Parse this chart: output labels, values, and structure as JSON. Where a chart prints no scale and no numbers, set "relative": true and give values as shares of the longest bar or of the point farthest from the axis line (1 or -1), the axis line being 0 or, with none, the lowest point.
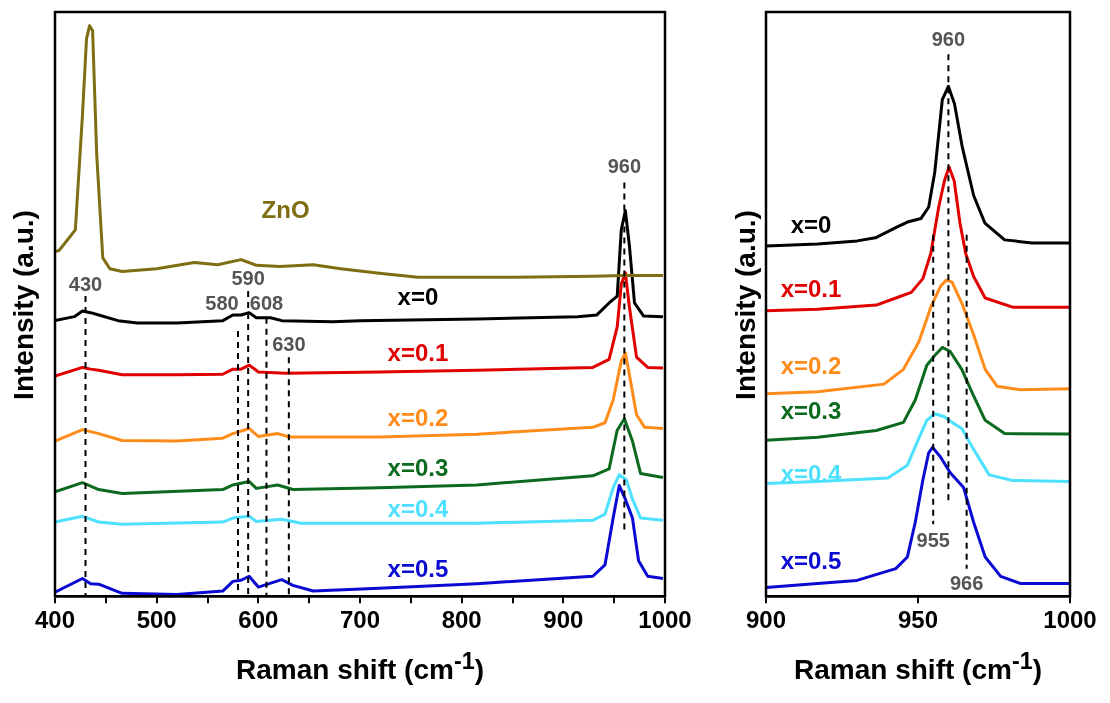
{
  "chart_data": [
    {
      "type": "line",
      "relative": true,
      "legend": false,
      "grid": false,
      "marker": "none",
      "xlabel": "Raman shift (cm$^{-1}$)",
      "ylabel": "Intensity (a.u.)",
      "xlim": [
        400,
        1000
      ],
      "xticks": [
        400,
        {
          "value": 450,
          "label": null
        },
        500,
        {
          "value": 550,
          "label": null
        },
        600,
        {
          "value": 650,
          "label": null
        },
        700,
        {
          "value": 750,
          "label": null
        },
        800,
        {
          "value": 850,
          "label": null
        },
        900,
        {
          "value": 950,
          "label": null
        },
        1000
      ],
      "series": [
        {
          "name": "ZnO",
          "color": "#7f6d12",
          "x": [
            400,
            404,
            420,
            427,
            431,
            434,
            437,
            441,
            447,
            454,
            466,
            500,
            537,
            560,
            583,
            598,
            621,
            654,
            681,
            719,
            757,
            853,
            929,
            960,
            998
          ],
          "values": [
            0.604,
            0.606,
            0.642,
            0.843,
            0.977,
            1,
            0.991,
            0.775,
            0.593,
            0.574,
            0.569,
            0.574,
            0.585,
            0.581,
            0.59,
            0.58,
            0.578,
            0.581,
            0.574,
            0.566,
            0.559,
            0.559,
            0.561,
            0.562,
            0.562
          ]
        },
        {
          "name": "x=0",
          "color": "#000000",
          "x": [
            400,
            419,
            427,
            435,
            443,
            462,
            481,
            520,
            565,
            575,
            583,
            591,
            598,
            612,
            623,
            673,
            700,
            815,
            914,
            933,
            945,
            953,
            957,
            961,
            965,
            970,
            979,
            998
          ],
          "values": [
            0.483,
            0.49,
            0.5,
            0.497,
            0.493,
            0.483,
            0.479,
            0.479,
            0.483,
            0.493,
            0.493,
            0.497,
            0.488,
            0.488,
            0.483,
            0.481,
            0.483,
            0.486,
            0.49,
            0.493,
            0.514,
            0.526,
            0.642,
            0.676,
            0.614,
            0.514,
            0.491,
            0.49
          ]
        },
        {
          "name": "x=0.1",
          "color": "#e00000",
          "x": [
            400,
            427,
            435,
            443,
            466,
            520,
            565,
            575,
            583,
            591,
            600,
            627,
            719,
            815,
            929,
            945,
            953,
            957,
            961,
            965,
            972,
            983,
            998
          ],
          "values": [
            0.386,
            0.401,
            0.398,
            0.396,
            0.388,
            0.388,
            0.389,
            0.398,
            0.398,
            0.405,
            0.393,
            0.391,
            0.393,
            0.396,
            0.401,
            0.415,
            0.472,
            0.547,
            0.567,
            0.507,
            0.419,
            0.401,
            0.4
          ]
        },
        {
          "name": "x=0.2",
          "color": "#ff8c1a",
          "x": [
            400,
            427,
            443,
            466,
            520,
            565,
            575,
            591,
            600,
            619,
            631,
            719,
            815,
            929,
            941,
            949,
            957,
            961,
            964,
            972,
            980,
            998
          ],
          "values": [
            0.272,
            0.292,
            0.285,
            0.273,
            0.272,
            0.277,
            0.285,
            0.294,
            0.28,
            0.285,
            0.279,
            0.279,
            0.284,
            0.296,
            0.304,
            0.344,
            0.412,
            0.426,
            0.398,
            0.318,
            0.296,
            0.294
          ]
        },
        {
          "name": "x=0.3",
          "color": "#0b6a1e",
          "x": [
            400,
            427,
            443,
            466,
            565,
            575,
            591,
            598,
            619,
            634,
            719,
            815,
            929,
            945,
            953,
            960,
            968,
            976,
            998
          ],
          "values": [
            0.183,
            0.199,
            0.187,
            0.18,
            0.187,
            0.195,
            0.201,
            0.189,
            0.195,
            0.187,
            0.19,
            0.195,
            0.211,
            0.223,
            0.291,
            0.311,
            0.272,
            0.215,
            0.208
          ]
        },
        {
          "name": "x=0.4",
          "color": "#4de0ff",
          "x": [
            400,
            427,
            443,
            466,
            565,
            575,
            591,
            598,
            623,
            642,
            719,
            815,
            929,
            941,
            949,
            955,
            962,
            968,
            976,
            998
          ],
          "values": [
            0.13,
            0.14,
            0.13,
            0.126,
            0.13,
            0.137,
            0.14,
            0.131,
            0.135,
            0.128,
            0.128,
            0.128,
            0.133,
            0.144,
            0.19,
            0.213,
            0.204,
            0.17,
            0.137,
            0.133
          ]
        },
        {
          "name": "x=0.5",
          "color": "#0a0ad2",
          "x": [
            400,
            427,
            435,
            443,
            466,
            520,
            565,
            575,
            583,
            591,
            600,
            623,
            634,
            654,
            719,
            815,
            929,
            941,
            949,
            955,
            961,
            968,
            974,
            983,
            998
          ],
          "values": [
            0.007,
            0.031,
            0.022,
            0.021,
            0.005,
            0.003,
            0.009,
            0.026,
            0.028,
            0.035,
            0.016,
            0.029,
            0.019,
            0.009,
            0.014,
            0.022,
            0.035,
            0.055,
            0.137,
            0.194,
            0.17,
            0.137,
            0.062,
            0.035,
            0.031
          ]
        }
      ],
      "ref_lines": [
        {
          "axis": "x",
          "value": 430,
          "label": "430",
          "line_style": "dashed"
        },
        {
          "axis": "x",
          "value": 580,
          "label": "580",
          "line_style": "dashed"
        },
        {
          "axis": "x",
          "value": 590,
          "label": "590",
          "line_style": "dashed"
        },
        {
          "axis": "x",
          "value": 608,
          "label": "608",
          "line_style": "dashed"
        },
        {
          "axis": "x",
          "value": 630,
          "label": "630",
          "line_style": "dashed"
        },
        {
          "axis": "x",
          "value": 960,
          "label": "960",
          "line_style": "dashed"
        }
      ]
    },
    {
      "type": "line",
      "relative": true,
      "legend": false,
      "grid": false,
      "marker": "none",
      "xlabel": "Raman shift (cm$^{-1}$)",
      "ylabel": "Intensity (a.u.)",
      "xlim": [
        900,
        1000
      ],
      "xticks": [
        900,
        950,
        1000
      ],
      "series": [
        {
          "name": "x=0",
          "color": "#000000",
          "x": [
            900,
            917,
            930,
            936,
            943,
            946.5,
            951,
            953.5,
            955.5,
            958,
            960,
            962,
            964.5,
            968.3,
            972,
            978.5,
            987.5,
            1000
          ],
          "values": [
            0.687,
            0.691,
            0.697,
            0.703,
            0.724,
            0.734,
            0.741,
            0.763,
            0.831,
            0.974,
            1,
            0.966,
            0.883,
            0.786,
            0.732,
            0.699,
            0.693,
            0.693
          ]
        },
        {
          "name": "x=0.1",
          "color": "#e00000",
          "x": [
            900,
            917,
            936.3,
            942.7,
            947.8,
            951.6,
            954.2,
            956.8,
            958.7,
            960.2,
            961.9,
            963.8,
            965.7,
            968.3,
            972.1,
            981.1,
            1000
          ],
          "values": [
            0.56,
            0.563,
            0.571,
            0.585,
            0.596,
            0.623,
            0.672,
            0.763,
            0.815,
            0.842,
            0.815,
            0.732,
            0.672,
            0.627,
            0.585,
            0.567,
            0.567
          ]
        },
        {
          "name": "x=0.2",
          "color": "#ff8c1a",
          "x": [
            900,
            917,
            938.8,
            945.2,
            950.3,
            954.2,
            957.4,
            959.3,
            961.2,
            964.4,
            968.3,
            972.1,
            976,
            983.6,
            1000
          ],
          "values": [
            0.397,
            0.401,
            0.416,
            0.445,
            0.499,
            0.567,
            0.608,
            0.62,
            0.616,
            0.575,
            0.513,
            0.445,
            0.412,
            0.405,
            0.407
          ]
        },
        {
          "name": "x=0.3",
          "color": "#0b6a1e",
          "x": [
            900,
            917,
            936.3,
            945.2,
            949.1,
            952.9,
            955.5,
            958,
            960.6,
            964.4,
            968.3,
            972.1,
            978.5,
            1000
          ],
          "values": [
            0.306,
            0.312,
            0.325,
            0.341,
            0.385,
            0.453,
            0.472,
            0.488,
            0.48,
            0.445,
            0.393,
            0.345,
            0.319,
            0.318
          ]
        },
        {
          "name": "x=0.4",
          "color": "#4de0ff",
          "x": [
            900,
            917,
            940.1,
            946.5,
            950.3,
            952.9,
            955.5,
            958.7,
            961.2,
            964.4,
            968.3,
            973.4,
            981.1,
            1000
          ],
          "values": [
            0.221,
            0.225,
            0.232,
            0.257,
            0.31,
            0.345,
            0.358,
            0.352,
            0.341,
            0.329,
            0.288,
            0.238,
            0.227,
            0.225
          ]
        },
        {
          "name": "x=0.5",
          "color": "#0a0ad2",
          "x": [
            900,
            917,
            929.9,
            942.7,
            946.5,
            949.1,
            951.6,
            953.5,
            954.8,
            957.4,
            960.6,
            965,
            968.3,
            972.1,
            977.2,
            983.6,
            1000
          ],
          "values": [
            0.017,
            0.025,
            0.031,
            0.054,
            0.077,
            0.145,
            0.228,
            0.281,
            0.292,
            0.273,
            0.242,
            0.213,
            0.145,
            0.077,
            0.039,
            0.025,
            0.025
          ]
        }
      ],
      "ref_lines": [
        {
          "axis": "x",
          "value": 960,
          "label": "960",
          "line_style": "dashed"
        },
        {
          "axis": "x",
          "value": 955,
          "label": "955",
          "line_style": "dashed"
        },
        {
          "axis": "x",
          "value": 966,
          "label": "966",
          "line_style": "dashed"
        }
      ]
    }
  ]
}
